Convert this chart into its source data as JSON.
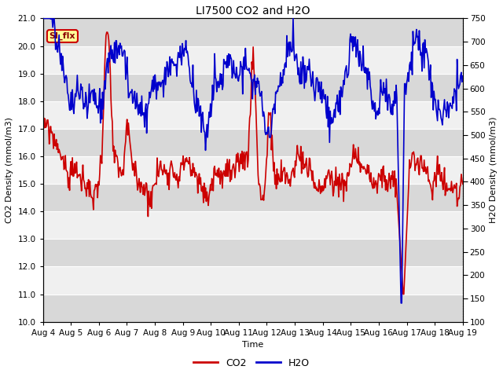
{
  "title": "LI7500 CO2 and H2O",
  "xlabel": "Time",
  "ylabel_left": "CO2 Density (mmol/m3)",
  "ylabel_right": "H2O Density (mmol/m3)",
  "co2_color": "#CC0000",
  "h2o_color": "#0000CC",
  "co2_ylim": [
    10.0,
    21.0
  ],
  "h2o_ylim": [
    100,
    750
  ],
  "co2_yticks": [
    10.0,
    11.0,
    12.0,
    13.0,
    14.0,
    15.0,
    16.0,
    17.0,
    18.0,
    19.0,
    20.0,
    21.0
  ],
  "h2o_yticks": [
    100,
    150,
    200,
    250,
    300,
    350,
    400,
    450,
    500,
    550,
    600,
    650,
    700,
    750
  ],
  "annotation_text": "SI_flx",
  "background_color": "#ffffff",
  "band_color_light": "#f0f0f0",
  "band_color_dark": "#d8d8d8",
  "linewidth": 1.2,
  "figwidth": 6.4,
  "figheight": 4.8,
  "dpi": 100
}
